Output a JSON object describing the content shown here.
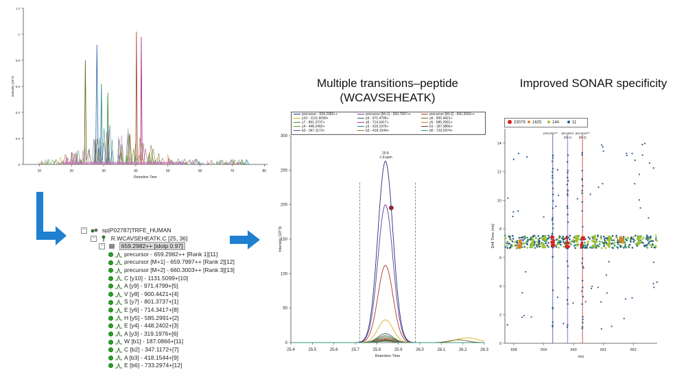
{
  "titles": {
    "transitions_line1": "Multiple transitions–peptide",
    "transitions_line2": "(WCAVSEHEATK)",
    "sonar": "Improved SONAR specificity"
  },
  "tree": {
    "root": "sp|P02787|TRFE_HUMAN",
    "peptide": "R.WCAVSEHEATK.C [25, 36]",
    "precursor_selected": "659.2982++ [idotp 0.97]",
    "transitions": [
      "precursor - 659.2982++ [Rank 1][11]",
      "precursor [M+1] - 659.7997++ [Rank 2][12]",
      "precursor [M+2] - 660.3003++ [Rank 3][13]",
      "C [y10] - 1131.5099+[10]",
      "A [y9] - 971.4799+[5]",
      "V [y8] - 900.4421+[4]",
      "S [y7] - 801.3737+[1]",
      "E [y6] - 714.3417+[8]",
      "H [y5] - 585.2991+[2]",
      "E [y4] - 448.2402+[3]",
      "A [y3] - 319.1976+[6]",
      "W [b1] - 187.0866+[11]",
      "C [b2] - 347.1172+[7]",
      "A [b3] - 418.1544+[9]",
      "E [b6] - 733.2974+[12]"
    ]
  },
  "chart_data": [
    {
      "type": "line",
      "title": "",
      "xlabel": "Retention Time",
      "ylabel": "Intensity (10^3)",
      "xlim": [
        5,
        81
      ],
      "ylim": [
        0,
        1.2
      ],
      "x_ticks": [
        "10",
        "20",
        "30",
        "40",
        "50",
        "60",
        "70",
        "80"
      ],
      "y_ticks": [
        "0",
        "0.2",
        "0.4",
        "0.6",
        "0.8",
        "1",
        "1.2"
      ],
      "series": [
        {
          "name": "dark olive",
          "color": "#6b6b1f",
          "x": [
            24.0,
            24.3,
            24.6
          ],
          "values": [
            0.02,
            0.8,
            0.03
          ]
        },
        {
          "name": "steel blue",
          "color": "#3a6fb0",
          "x": [
            27.5,
            27.9,
            28.3
          ],
          "values": [
            0.02,
            0.92,
            0.03
          ]
        },
        {
          "name": "sienna",
          "color": "#a0522d",
          "x": [
            40.0,
            40.2,
            40.5
          ],
          "values": [
            0.02,
            1.02,
            0.03
          ]
        },
        {
          "name": "magenta",
          "color": "#b03090",
          "x": [
            41.5,
            41.7,
            42.0
          ],
          "values": [
            0.02,
            0.98,
            0.03
          ]
        },
        {
          "name": "teal",
          "color": "#2a9090",
          "x": [
            29.0,
            29.3,
            29.6
          ],
          "values": [
            0.02,
            0.62,
            0.03
          ]
        },
        {
          "name": "green",
          "color": "#3a9a3a",
          "x": [
            31.0,
            31.3,
            31.6
          ],
          "values": [
            0.02,
            0.55,
            0.03
          ]
        }
      ]
    },
    {
      "type": "line",
      "xlabel": "Retention Time",
      "ylabel": "Intensity (10^3)",
      "xlim": [
        25.4,
        26.3
      ],
      "ylim": [
        0,
        300
      ],
      "x_ticks": [
        "25.4",
        "25.5",
        "25.6",
        "25.7",
        "25.8",
        "25.9",
        "26.0",
        "26.1",
        "26.2",
        "26.3"
      ],
      "y_ticks": [
        "0",
        "50",
        "100",
        "150",
        "200",
        "250",
        "300"
      ],
      "peak_rt": 25.84,
      "integration_bounds": [
        25.72,
        25.98
      ],
      "apex_label_1": "25.8",
      "apex_label_2": "-1.8 ppm",
      "series": [
        {
          "name": "precursor - 659.2982++",
          "color": "#1f2a7a",
          "apex": 263
        },
        {
          "name": "precursor [M+1] - 659.7997++",
          "color": "#5a3a9a",
          "apex": 200
        },
        {
          "name": "precursor [M+2] - 660.3003++",
          "color": "#b03020",
          "apex": 112
        },
        {
          "name": "y10 - 1131.5099+",
          "color": "#d4b020",
          "apex": 33
        },
        {
          "name": "y9 - 971.4799+",
          "color": "#2a5a5a",
          "apex": 13
        },
        {
          "name": "y8 - 900.4421+",
          "color": "#7a5a20",
          "apex": 10
        },
        {
          "name": "y7 - 801.3737+",
          "color": "#3a8a3a",
          "apex": 8
        },
        {
          "name": "y6 - 714.3417+",
          "color": "#a04080",
          "apex": 6
        },
        {
          "name": "y5 - 585.2991+",
          "color": "#c08030",
          "apex": 5
        },
        {
          "name": "y4 - 448.2402+",
          "color": "#6a8a2a",
          "apex": 4
        },
        {
          "name": "y3 - 319.1976+",
          "color": "#2a7aa0",
          "apex": 3
        },
        {
          "name": "b1 - 187.0866+",
          "color": "#8a2a2a",
          "apex": 3
        },
        {
          "name": "b2 - 347.1172+",
          "color": "#4a4a9a",
          "apex": 2
        },
        {
          "name": "b3 - 418.1544+",
          "color": "#9a6a2a",
          "apex": 2
        },
        {
          "name": "b6 - 733.2974+",
          "color": "#2a9a7a",
          "apex": 2
        }
      ],
      "legend": [
        {
          "label": "precursor - 659.2982++",
          "color": "#1f2a7a"
        },
        {
          "label": "precursor [M+1] - 659.7997++",
          "color": "#5a3a9a"
        },
        {
          "label": "precursor [M+2] - 660.3003++",
          "color": "#b03020"
        },
        {
          "label": "y10 - 1131.5099+",
          "color": "#d4b020"
        },
        {
          "label": "y9 - 971.4799+",
          "color": "#2a5a5a"
        },
        {
          "label": "y8 - 900.4421+",
          "color": "#7a5a20"
        },
        {
          "label": "y7 - 801.3737+",
          "color": "#3a8a3a"
        },
        {
          "label": "y6 - 714.3417+",
          "color": "#a04080"
        },
        {
          "label": "y5 - 585.2991+",
          "color": "#c08030"
        },
        {
          "label": "y4 - 448.2402+",
          "color": "#6a8a2a"
        },
        {
          "label": "y3 - 319.1976+",
          "color": "#2a7aa0"
        },
        {
          "label": "b1 - 187.0866+",
          "color": "#8a2a2a"
        },
        {
          "label": "b2 - 347.1172+",
          "color": "#4a4a9a"
        },
        {
          "label": "b3 - 418.1544+",
          "color": "#9a6a2a"
        },
        {
          "label": "b6 - 733.2974+",
          "color": "#2a9a7a"
        }
      ]
    },
    {
      "type": "scatter",
      "xlabel": "m/z",
      "ylabel": "Drift Time (ms)",
      "xlim": [
        657.7,
        662.8
      ],
      "ylim": [
        0,
        15
      ],
      "x_ticks": [
        "658",
        "659",
        "660",
        "661",
        "662"
      ],
      "y_ticks": [
        "0",
        "2",
        "4",
        "6",
        "8",
        "10",
        "12",
        "14"
      ],
      "legend": [
        {
          "label": "23079",
          "color": "#e02020"
        },
        {
          "label": "1625",
          "color": "#e08020"
        },
        {
          "label": "144",
          "color": "#a0c030"
        },
        {
          "label": "11",
          "color": "#2a5a8a"
        }
      ],
      "markers": [
        {
          "label": "precursor",
          "mz": 659.3,
          "color": "#3030c0"
        },
        {
          "label": "precursor [M+1]",
          "mz": 659.8,
          "color": "#7a3ab0"
        },
        {
          "label": "precursor [M+2]",
          "mz": 660.3,
          "color": "#d02020"
        }
      ],
      "band_drift": 7.1
    }
  ]
}
